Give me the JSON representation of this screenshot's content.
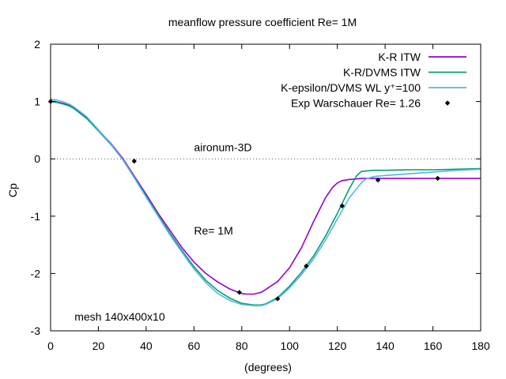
{
  "chart_data": {
    "type": "line",
    "title": "meanflow pressure coefficient  Re= 1M",
    "xlabel": "(degrees)",
    "ylabel": "Cp",
    "xlim": [
      0,
      180
    ],
    "ylim": [
      -3,
      2
    ],
    "xticks": [
      0,
      20,
      40,
      60,
      80,
      100,
      120,
      140,
      160,
      180
    ],
    "yticks": [
      -3,
      -2,
      -1,
      0,
      1,
      2
    ],
    "grid": false,
    "zero_line": true,
    "legend_position": "top-right",
    "annotations": [
      {
        "text": "aironum-3D",
        "x": 60,
        "y": 0.2
      },
      {
        "text": "Re= 1M",
        "x": 60,
        "y": -1.25
      },
      {
        "text": "mesh 140x400x10",
        "x": 10,
        "y": -2.75
      }
    ],
    "series": [
      {
        "name": "K-R ITW",
        "color": "#9400d3",
        "style": "line",
        "x": [
          0,
          2,
          5,
          8,
          10,
          15,
          20,
          25,
          30,
          35,
          40,
          45,
          50,
          55,
          60,
          65,
          70,
          75,
          80,
          82,
          85,
          88,
          90,
          95,
          100,
          105,
          110,
          115,
          118,
          120,
          122,
          125,
          128,
          130,
          135,
          140,
          150,
          160,
          170,
          180
        ],
        "y": [
          1.0,
          1.0,
          0.97,
          0.93,
          0.88,
          0.72,
          0.5,
          0.28,
          0.02,
          -0.3,
          -0.62,
          -0.95,
          -1.25,
          -1.55,
          -1.8,
          -2.0,
          -2.15,
          -2.27,
          -2.35,
          -2.36,
          -2.36,
          -2.33,
          -2.28,
          -2.14,
          -1.9,
          -1.55,
          -1.1,
          -0.68,
          -0.5,
          -0.42,
          -0.38,
          -0.36,
          -0.35,
          -0.34,
          -0.34,
          -0.34,
          -0.34,
          -0.34,
          -0.34,
          -0.34
        ]
      },
      {
        "name": "K-R/DVMS ITW",
        "color": "#009e73",
        "style": "line",
        "x": [
          0,
          2,
          5,
          8,
          10,
          15,
          20,
          25,
          30,
          35,
          40,
          45,
          50,
          55,
          60,
          65,
          70,
          75,
          80,
          85,
          88,
          90,
          95,
          100,
          105,
          110,
          115,
          120,
          125,
          128,
          130,
          135,
          140,
          150,
          160,
          170,
          180
        ],
        "y": [
          1.0,
          0.99,
          0.96,
          0.92,
          0.87,
          0.71,
          0.49,
          0.26,
          0.0,
          -0.32,
          -0.65,
          -0.98,
          -1.3,
          -1.6,
          -1.88,
          -2.12,
          -2.3,
          -2.43,
          -2.52,
          -2.55,
          -2.55,
          -2.53,
          -2.42,
          -2.22,
          -1.98,
          -1.7,
          -1.35,
          -0.95,
          -0.52,
          -0.3,
          -0.22,
          -0.2,
          -0.2,
          -0.19,
          -0.19,
          -0.18,
          -0.17
        ]
      },
      {
        "name": "K-epsilon/DVMS WL y⁺=100",
        "color": "#56b4e9",
        "style": "line",
        "x": [
          0,
          2,
          5,
          8,
          10,
          15,
          20,
          25,
          30,
          35,
          40,
          45,
          50,
          55,
          60,
          65,
          70,
          75,
          80,
          85,
          88,
          90,
          95,
          100,
          105,
          110,
          115,
          120,
          125,
          130,
          132,
          135,
          140,
          150,
          160,
          170,
          180
        ],
        "y": [
          1.04,
          1.03,
          1.0,
          0.95,
          0.9,
          0.74,
          0.51,
          0.27,
          0.0,
          -0.33,
          -0.67,
          -1.0,
          -1.33,
          -1.63,
          -1.92,
          -2.16,
          -2.35,
          -2.47,
          -2.54,
          -2.56,
          -2.56,
          -2.54,
          -2.44,
          -2.25,
          -2.02,
          -1.75,
          -1.42,
          -1.05,
          -0.68,
          -0.42,
          -0.35,
          -0.31,
          -0.29,
          -0.26,
          -0.23,
          -0.2,
          -0.18
        ]
      },
      {
        "name": "Exp Warschauer Re= 1.26",
        "color": "#000000",
        "style": "points",
        "x": [
          0,
          35,
          79,
          95,
          107,
          122,
          137,
          162
        ],
        "y": [
          1.0,
          -0.04,
          -2.33,
          -2.44,
          -1.87,
          -0.82,
          -0.37,
          -0.34
        ]
      }
    ]
  }
}
